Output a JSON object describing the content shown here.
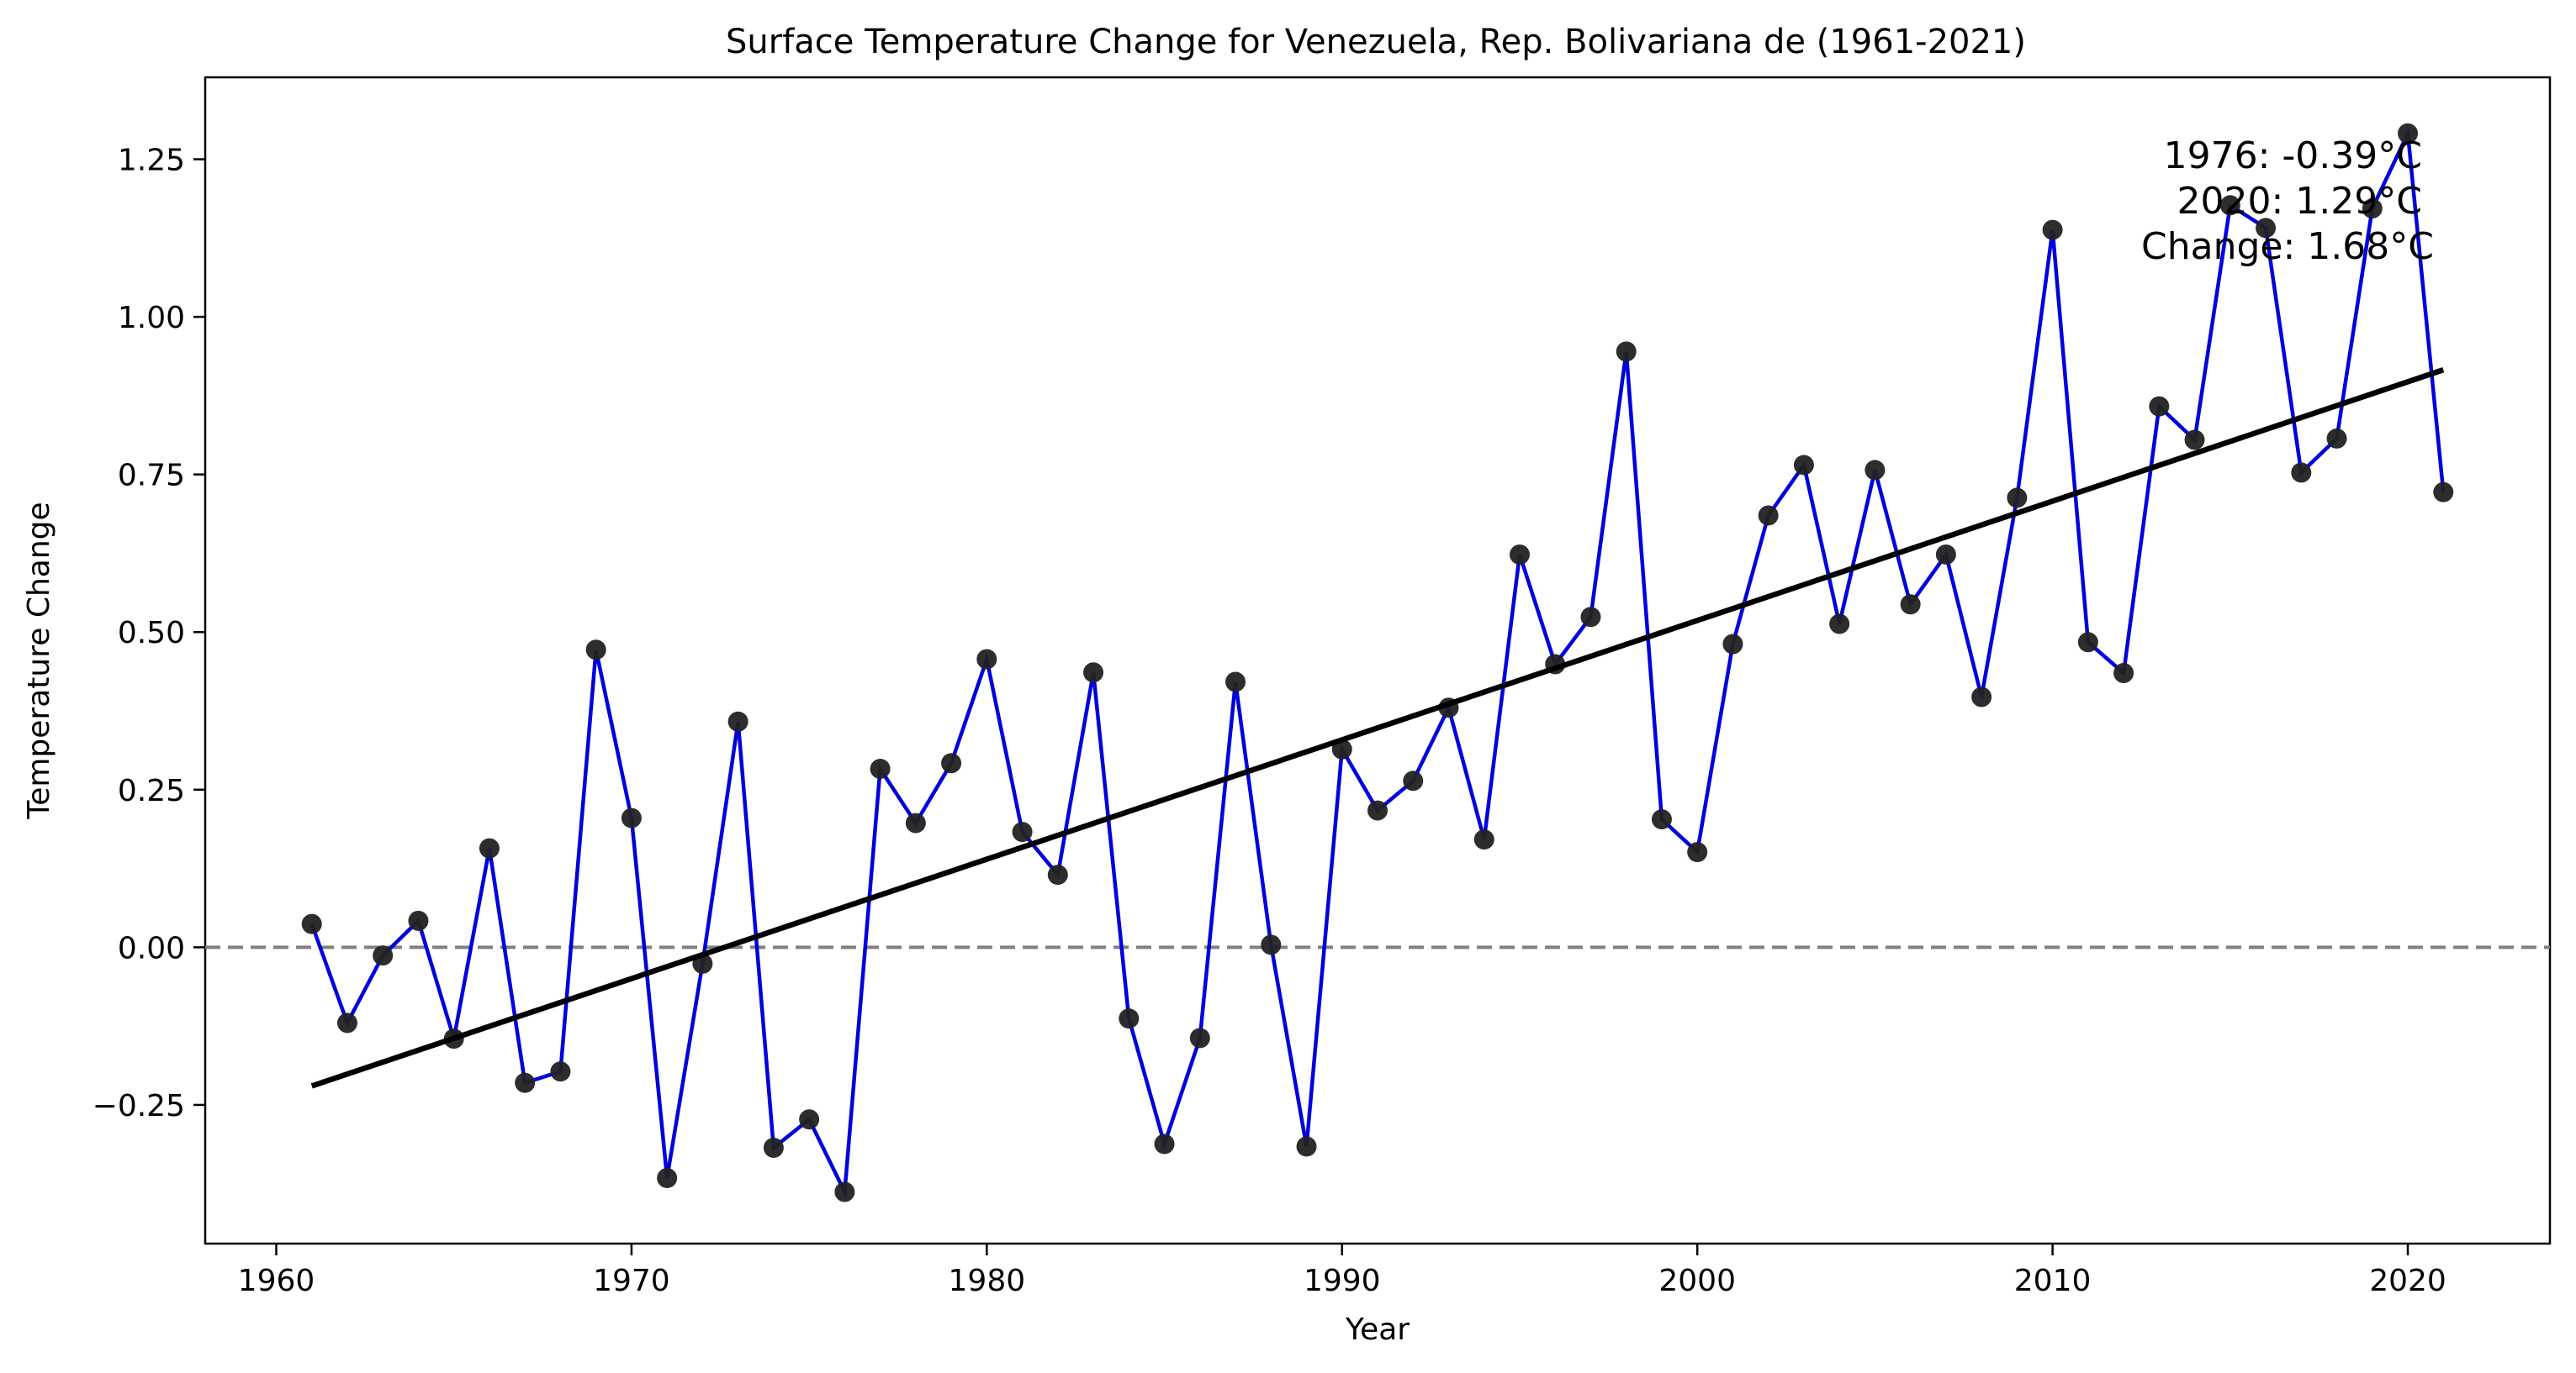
{
  "chart_data": {
    "type": "line",
    "title": "Surface Temperature Change for Venezuela, Rep. Bolivariana de (1961-2021)",
    "xlabel": "Year",
    "ylabel": "Temperature Change",
    "xlim": [
      1958.0,
      2024.0
    ],
    "ylim": [
      -0.47,
      1.38
    ],
    "xticks": [
      1960,
      1970,
      1980,
      1990,
      2000,
      2010,
      2020
    ],
    "xtick_labels": [
      "1960",
      "1970",
      "1980",
      "1990",
      "2000",
      "2010",
      "2020"
    ],
    "yticks": [
      -0.25,
      0.0,
      0.25,
      0.5,
      0.75,
      1.0,
      1.25
    ],
    "ytick_labels": [
      "−0.25",
      "0.00",
      "0.25",
      "0.50",
      "0.75",
      "1.00",
      "1.25"
    ],
    "grid": false,
    "zero_line": {
      "y": 0.0,
      "style": "dashed",
      "color": "#808080"
    },
    "series": [
      {
        "color": "#0000dd",
        "marker_color": "#222222",
        "x": [
          1961,
          1962,
          1963,
          1964,
          1965,
          1966,
          1967,
          1968,
          1969,
          1970,
          1971,
          1972,
          1973,
          1974,
          1975,
          1976,
          1977,
          1978,
          1979,
          1980,
          1981,
          1982,
          1983,
          1984,
          1985,
          1986,
          1987,
          1988,
          1989,
          1990,
          1991,
          1992,
          1993,
          1994,
          1995,
          1996,
          1997,
          1998,
          1999,
          2000,
          2001,
          2002,
          2003,
          2004,
          2005,
          2006,
          2007,
          2008,
          2009,
          2010,
          2011,
          2012,
          2013,
          2014,
          2015,
          2016,
          2017,
          2018,
          2019,
          2020,
          2021
        ],
        "y": [
          0.037,
          -0.12,
          -0.013,
          0.042,
          -0.145,
          0.157,
          -0.215,
          -0.197,
          0.472,
          0.205,
          -0.366,
          -0.026,
          0.358,
          -0.318,
          -0.273,
          -0.388,
          0.283,
          0.197,
          0.292,
          0.457,
          0.183,
          0.115,
          0.436,
          -0.113,
          -0.312,
          -0.144,
          0.421,
          0.004,
          -0.316,
          0.314,
          0.217,
          0.264,
          0.38,
          0.171,
          0.623,
          0.449,
          0.524,
          0.945,
          0.203,
          0.151,
          0.481,
          0.685,
          0.765,
          0.513,
          0.757,
          0.544,
          0.623,
          0.397,
          0.713,
          1.138,
          0.484,
          0.435,
          0.858,
          0.805,
          1.177,
          1.141,
          0.753,
          0.807,
          1.172,
          1.291,
          0.722
        ]
      }
    ],
    "trend_line": {
      "color": "#000000",
      "x": [
        1961,
        2021
      ],
      "y": [
        -0.22,
        0.916
      ]
    },
    "annotation": {
      "color": "#FFA500",
      "lines": [
        "1976: -0.39°C",
        "2020: 1.29°C",
        "Change: 1.68°C"
      ]
    }
  }
}
